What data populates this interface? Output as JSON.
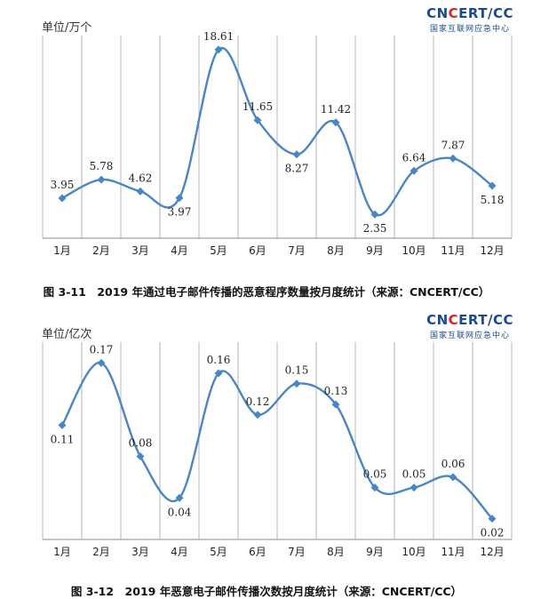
{
  "logo": {
    "main_left": "CN",
    "main_red": "C",
    "main_right": "ERT/CC",
    "sub": "国家互联网应急中心"
  },
  "chart_data": [
    {
      "type": "line",
      "unit_label": "单位/万个",
      "categories": [
        "1月",
        "2月",
        "3月",
        "4月",
        "5月",
        "6月",
        "7月",
        "8月",
        "9月",
        "10月",
        "11月",
        "12月"
      ],
      "values": [
        3.95,
        5.78,
        4.62,
        3.97,
        18.61,
        11.65,
        8.27,
        11.42,
        2.35,
        6.64,
        7.87,
        5.18
      ],
      "value_labels": [
        "3.95",
        "5.78",
        "4.62",
        "3.97",
        "18.61",
        "11.65",
        "8.27",
        "11.42",
        "2.35",
        "6.64",
        "7.87",
        "5.18"
      ],
      "label_positions": [
        "above",
        "above",
        "above",
        "below",
        "above",
        "above",
        "below",
        "above",
        "below",
        "above",
        "above",
        "below"
      ],
      "ylim": [
        0,
        20
      ],
      "line_color": "#4a86c4",
      "caption": "图 3-11　2019 年通过电子邮件传播的恶意程序数量按月度统计（来源：CNCERT/CC）"
    },
    {
      "type": "line",
      "unit_label": "单位/亿次",
      "categories": [
        "1月",
        "2月",
        "3月",
        "4月",
        "5月",
        "6月",
        "7月",
        "8月",
        "9月",
        "10月",
        "11月",
        "12月"
      ],
      "values": [
        0.11,
        0.17,
        0.08,
        0.04,
        0.16,
        0.12,
        0.15,
        0.13,
        0.05,
        0.05,
        0.06,
        0.02
      ],
      "value_labels": [
        "0.11",
        "0.17",
        "0.08",
        "0.04",
        "0.16",
        "0.12",
        "0.15",
        "0.13",
        "0.05",
        "0.05",
        "0.06",
        "0.02"
      ],
      "label_positions": [
        "below",
        "above",
        "above",
        "below",
        "above",
        "above",
        "above",
        "above",
        "above",
        "above",
        "above",
        "below"
      ],
      "ylim": [
        0,
        0.19
      ],
      "line_color": "#4a86c4",
      "caption": "图 3-12　2019 年恶意电子邮件传播次数按月度统计（来源：CNCERT/CC）"
    }
  ]
}
